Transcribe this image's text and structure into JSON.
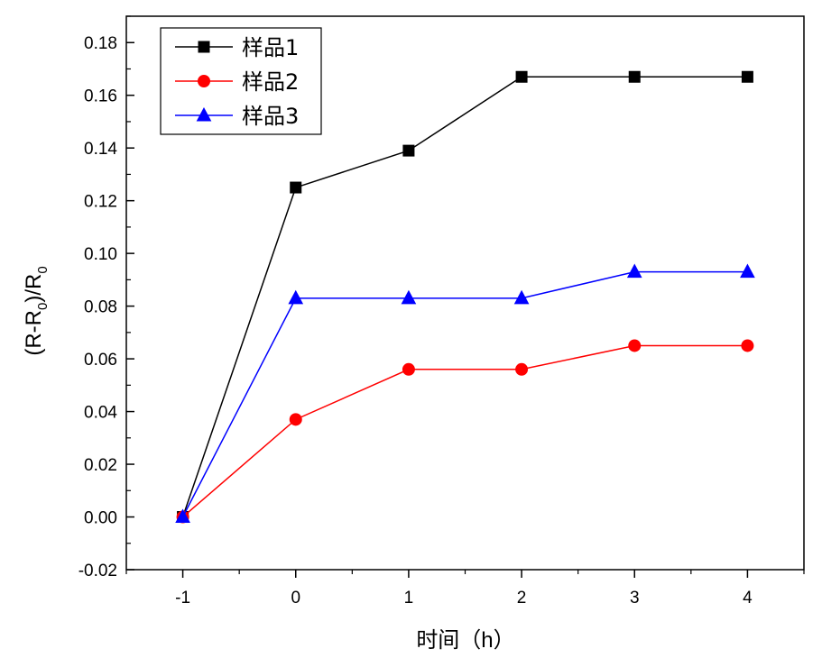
{
  "chart_data": {
    "type": "line",
    "title": "",
    "xlabel": "时间（h）",
    "ylabel": {
      "prefix": "(R-R",
      "sub1": "0",
      "mid": ")/R",
      "sub2": "0"
    },
    "x": [
      -1,
      0,
      1,
      2,
      3,
      4
    ],
    "xlim": [
      -1.5,
      4.5
    ],
    "ylim": [
      -0.02,
      0.19
    ],
    "xticks": [
      "-1",
      "0",
      "1",
      "2",
      "3",
      "4"
    ],
    "yticks": [
      "-0.02",
      "0.00",
      "0.02",
      "0.04",
      "0.06",
      "0.08",
      "0.10",
      "0.12",
      "0.14",
      "0.16",
      "0.18"
    ],
    "grid": false,
    "legend_position": "top-left",
    "series": [
      {
        "name": "样品1",
        "color": "#000000",
        "marker": "square",
        "values": [
          0,
          0.125,
          0.139,
          0.167,
          0.167,
          0.167
        ]
      },
      {
        "name": "样品2",
        "color": "#ff0000",
        "marker": "circle",
        "values": [
          0,
          0.037,
          0.056,
          0.056,
          0.065,
          0.065
        ]
      },
      {
        "name": "样品3",
        "color": "#0000ff",
        "marker": "triangle",
        "values": [
          0,
          0.083,
          0.083,
          0.083,
          0.093,
          0.093
        ]
      }
    ]
  }
}
